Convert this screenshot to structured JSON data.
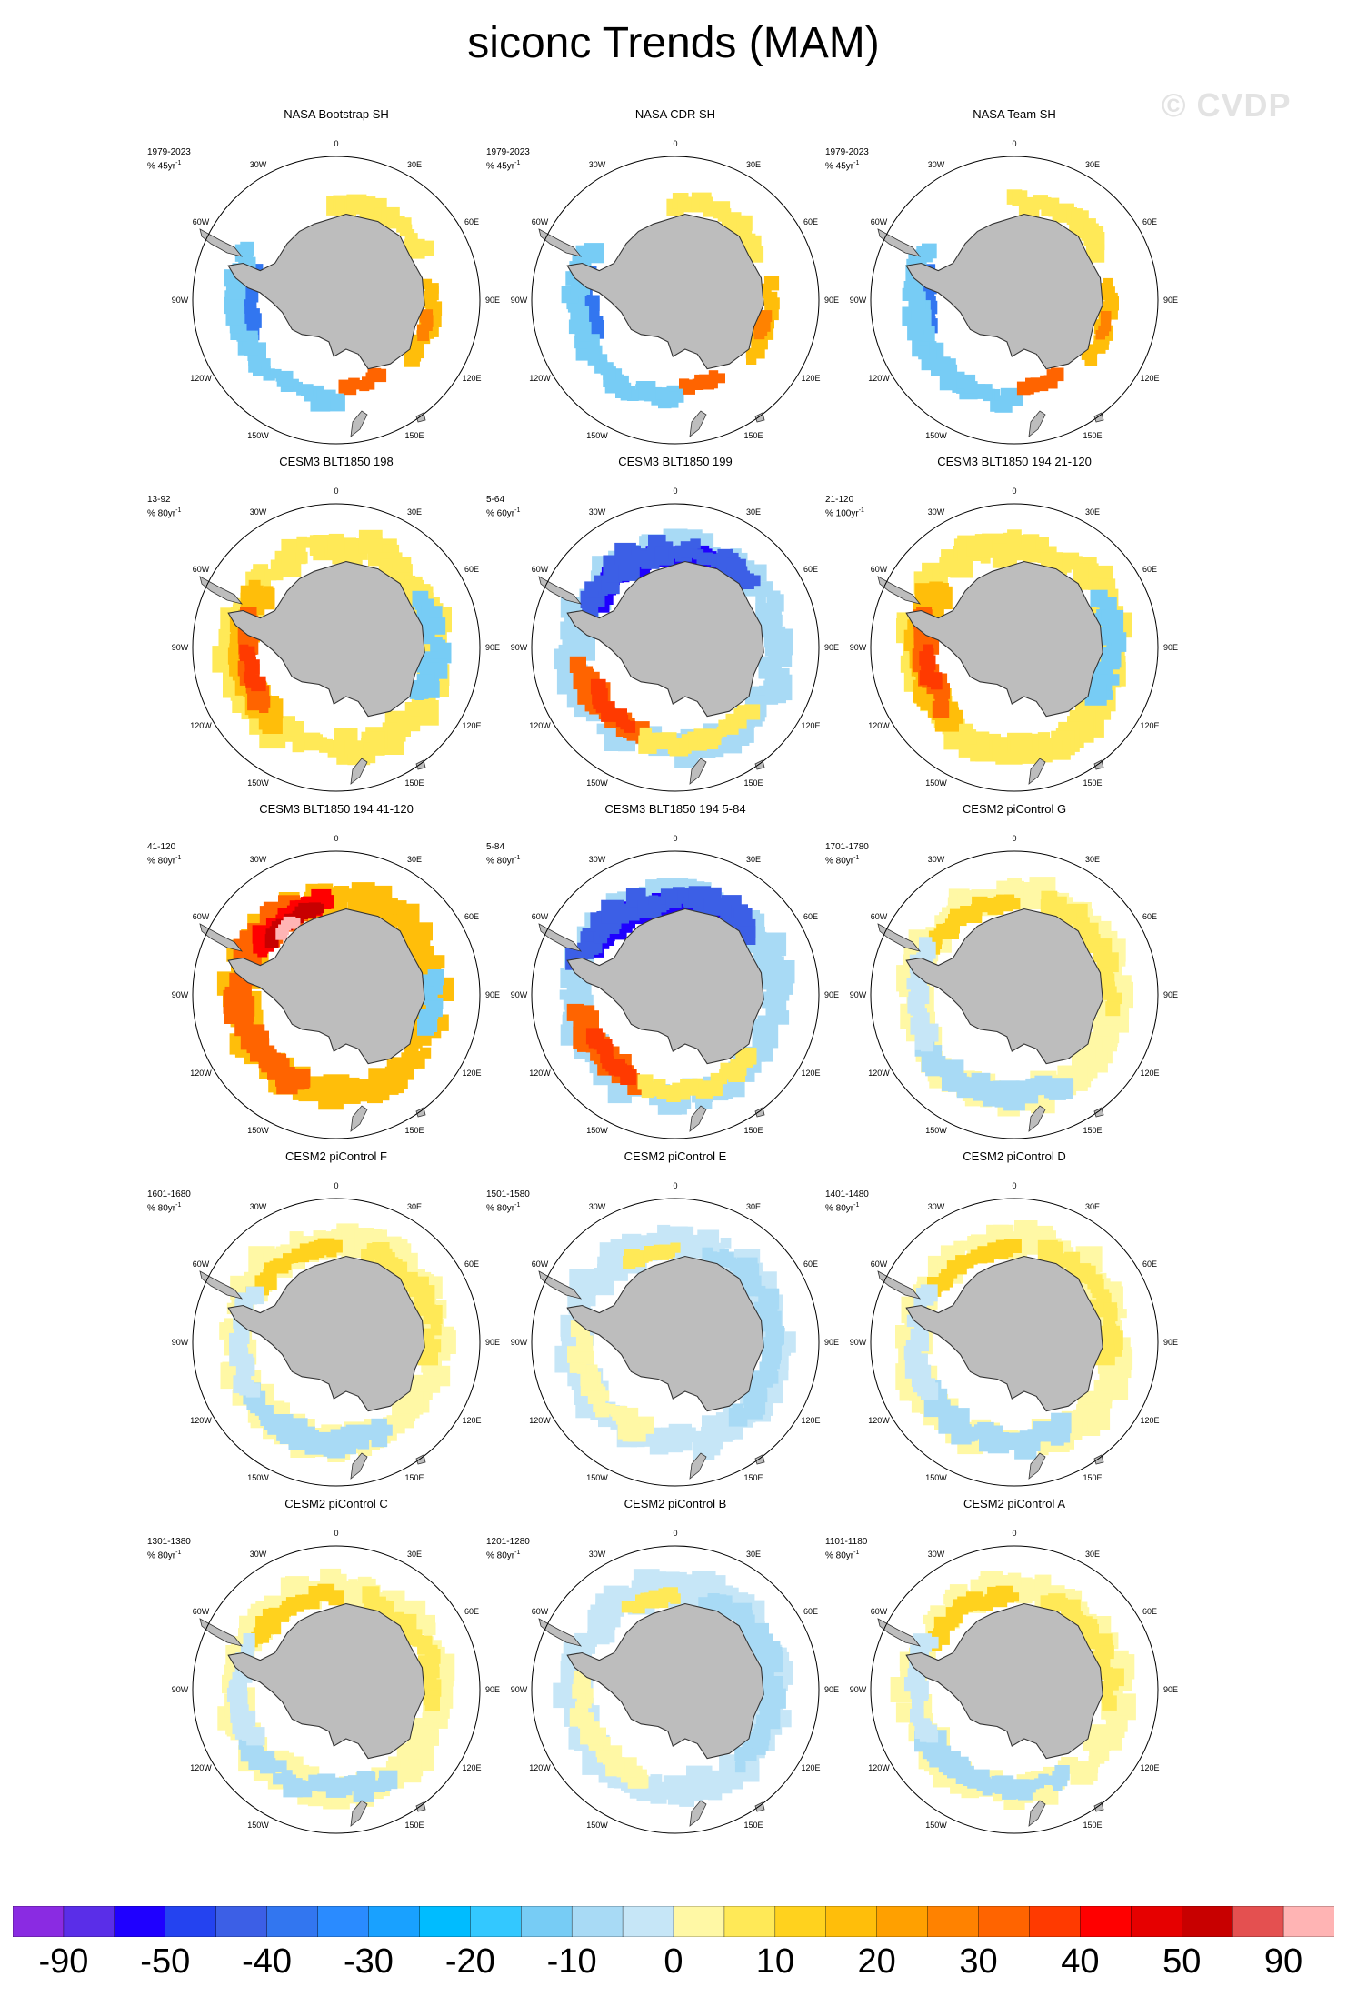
{
  "title": "siconc Trends (MAM)",
  "watermark": "© CVDP",
  "lon_labels": [
    "0",
    "30E",
    "60E",
    "90E",
    "120E",
    "150E",
    "180",
    "150W",
    "120W",
    "90W",
    "60W",
    "30W"
  ],
  "chart_data": {
    "type": "heatmap",
    "projection": "south polar stereographic",
    "panels": [
      {
        "title": "NASA Bootstrap SH",
        "years": "1979-2023",
        "units": "% 45yr",
        "pattern": "observed"
      },
      {
        "title": "NASA CDR SH",
        "years": "1979-2023",
        "units": "% 45yr",
        "pattern": "observed"
      },
      {
        "title": "NASA Team SH",
        "years": "1979-2023",
        "units": "% 45yr",
        "pattern": "observed"
      },
      {
        "title": "CESM3 BLT1850 198",
        "years": "13-92",
        "units": "% 80yr",
        "pattern": "warm-west"
      },
      {
        "title": "CESM3 BLT1850 199",
        "years": "5-64",
        "units": "% 60yr",
        "pattern": "dipole"
      },
      {
        "title": "CESM3 BLT1850 194 21-120",
        "years": "21-120",
        "units": "% 100yr",
        "pattern": "warm-west"
      },
      {
        "title": "CESM3 BLT1850 194 41-120",
        "years": "41-120",
        "units": "% 80yr",
        "pattern": "strong-warm"
      },
      {
        "title": "CESM3 BLT1850 194 5-84",
        "years": "5-84",
        "units": "% 80yr",
        "pattern": "dipole"
      },
      {
        "title": "CESM2 piControl G",
        "years": "1701-1780",
        "units": "% 80yr",
        "pattern": "weak"
      },
      {
        "title": "CESM2 piControl F",
        "years": "1601-1680",
        "units": "% 80yr",
        "pattern": "weak"
      },
      {
        "title": "CESM2 piControl E",
        "years": "1501-1580",
        "units": "% 80yr",
        "pattern": "weak-blue"
      },
      {
        "title": "CESM2 piControl D",
        "years": "1401-1480",
        "units": "% 80yr",
        "pattern": "weak"
      },
      {
        "title": "CESM2 piControl C",
        "years": "1301-1380",
        "units": "% 80yr",
        "pattern": "weak"
      },
      {
        "title": "CESM2 piControl B",
        "years": "1201-1280",
        "units": "% 80yr",
        "pattern": "weak-blue"
      },
      {
        "title": "CESM2 piControl A",
        "years": "1101-1180",
        "units": "% 80yr",
        "pattern": "weak"
      }
    ],
    "colorbar": {
      "colors": [
        "#8a2be2",
        "#5a2ee8",
        "#1f00ff",
        "#2443f0",
        "#3c5fe6",
        "#3276f0",
        "#2a8bff",
        "#19a1ff",
        "#00bcff",
        "#33c8ff",
        "#77ccf5",
        "#a8daf5",
        "#c6e6f7",
        "#fff8a5",
        "#ffe957",
        "#ffd21e",
        "#ffbe0a",
        "#ffa000",
        "#ff8200",
        "#ff6400",
        "#ff3a00",
        "#ff0000",
        "#e60000",
        "#c80000",
        "#e45050",
        "#ffb4b4"
      ],
      "labels": [
        "-90",
        "-50",
        "-40",
        "-30",
        "-20",
        "-10",
        "0",
        "10",
        "20",
        "30",
        "40",
        "50",
        "90"
      ]
    }
  }
}
